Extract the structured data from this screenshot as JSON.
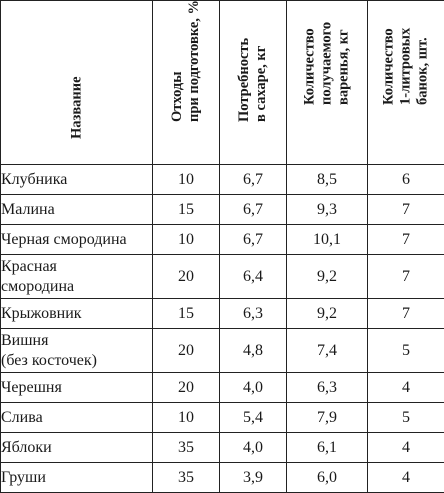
{
  "headers": {
    "name": "Название",
    "waste": "Отходы\nпри подготовке, %",
    "sugar": "Потребность\nв сахаре, кг",
    "jam": "Количество\nполучаемого\nваренья, кг",
    "jars": "Количество\n1-литровых\nбанок, шт."
  },
  "rows": [
    {
      "name": "Клубника",
      "waste": "10",
      "sugar": "6,7",
      "jam": "8,5",
      "jars": "6"
    },
    {
      "name": "Малина",
      "waste": "15",
      "sugar": "6,7",
      "jam": "9,3",
      "jars": "7"
    },
    {
      "name": "Черная смородина",
      "waste": "10",
      "sugar": "6,7",
      "jam": "10,1",
      "jars": "7"
    },
    {
      "name": "Красная\nсмородина",
      "waste": "20",
      "sugar": "6,4",
      "jam": "9,2",
      "jars": "7"
    },
    {
      "name": "Крыжовник",
      "waste": "15",
      "sugar": "6,3",
      "jam": "9,2",
      "jars": "7"
    },
    {
      "name": "Вишня\n(без косточек)",
      "waste": "20",
      "sugar": "4,8",
      "jam": "7,4",
      "jars": "5"
    },
    {
      "name": "Черешня",
      "waste": "20",
      "sugar": "4,0",
      "jam": "6,3",
      "jars": "4"
    },
    {
      "name": "Слива",
      "waste": "10",
      "sugar": "5,4",
      "jam": "7,9",
      "jars": "5"
    },
    {
      "name": "Яблоки",
      "waste": "35",
      "sugar": "4,0",
      "jam": "6,1",
      "jars": "4"
    },
    {
      "name": "Груши",
      "waste": "35",
      "sugar": "3,9",
      "jam": "6,0",
      "jars": "4"
    }
  ]
}
